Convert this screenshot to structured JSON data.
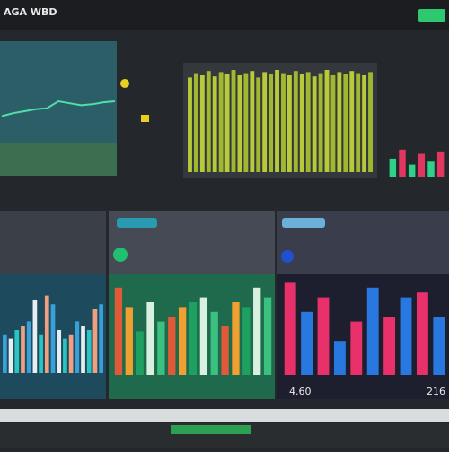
{
  "header": {
    "title": "AGA WBD"
  },
  "footer": {
    "left_value": "4.60",
    "right_value": "216"
  },
  "panels": [
    {
      "name": "trend",
      "type": "line",
      "color": "#4fe0a8",
      "values": [
        55,
        58,
        60,
        62,
        63,
        70,
        68,
        66,
        67,
        69,
        70
      ],
      "ylim": [
        0,
        100
      ]
    },
    {
      "name": "density",
      "type": "bar",
      "colors": [
        "#b8c93a",
        "#9fb830"
      ],
      "values": [
        88,
        92,
        90,
        94,
        89,
        93,
        91,
        95,
        90,
        92,
        94,
        88,
        93,
        91,
        95,
        92,
        90,
        94,
        91,
        93,
        89,
        92,
        95,
        90,
        93,
        91,
        94,
        92,
        90,
        93
      ],
      "ylim": [
        0,
        100
      ]
    },
    {
      "name": "ticker",
      "type": "bar",
      "colors": [
        "#2fd08a",
        "#e0365f"
      ],
      "values": [
        30,
        45,
        20,
        38,
        25,
        42
      ],
      "ylim": [
        0,
        100
      ]
    },
    {
      "name": "left-bars",
      "type": "bar",
      "colors": [
        "#3aa0d8",
        "#e6eef2",
        "#2bc4c0",
        "#f0a080"
      ],
      "values": [
        45,
        40,
        50,
        55,
        60,
        85,
        45,
        90,
        80,
        50,
        40,
        45,
        60,
        55,
        50,
        75,
        80
      ],
      "ylim": [
        0,
        100
      ]
    },
    {
      "name": "mid-bars",
      "type": "bar",
      "colors": [
        "#e05a3a",
        "#f0a030",
        "#1ea060",
        "#d8f0e0",
        "#3cc080"
      ],
      "values": [
        90,
        70,
        45,
        75,
        55,
        60,
        70,
        75,
        80,
        65,
        50,
        75,
        70,
        90,
        80
      ],
      "ylim": [
        0,
        100
      ]
    },
    {
      "name": "right-bars",
      "type": "bar",
      "colors": [
        "#e8306a",
        "#2878e0"
      ],
      "values": [
        95,
        65,
        80,
        35,
        55,
        90,
        60,
        80,
        85,
        60
      ],
      "ylim": [
        0,
        100
      ]
    }
  ]
}
